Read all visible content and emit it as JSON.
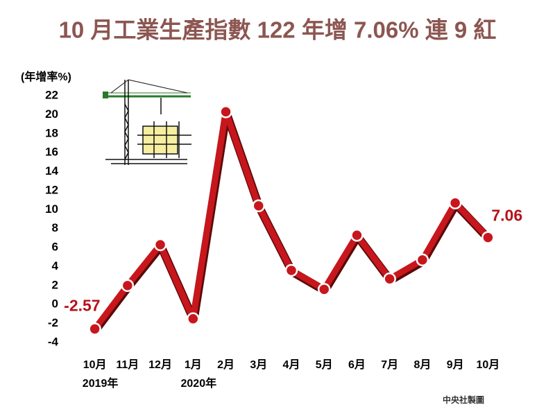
{
  "chart_data": {
    "type": "line",
    "title": "10 月工業生產指數 122 年增 7.06% 連 9 紅",
    "y_axis_label": "(年增率%)",
    "source": "中央社製圖",
    "categories": [
      "10月",
      "11月",
      "12月",
      "1月",
      "2月",
      "3月",
      "4月",
      "5月",
      "6月",
      "7月",
      "8月",
      "9月",
      "10月"
    ],
    "x_group_labels": [
      "2019年",
      null,
      null,
      "2020年",
      null,
      null,
      null,
      null,
      null,
      null,
      null,
      null,
      null
    ],
    "series": [
      {
        "name": "年增率",
        "color": "#c8161d",
        "values": [
          -2.57,
          2.0,
          6.3,
          -1.5,
          20.3,
          10.4,
          3.6,
          1.6,
          7.3,
          2.7,
          4.7,
          10.7,
          7.06
        ],
        "value_labels": [
          "-2.57",
          null,
          null,
          null,
          null,
          null,
          null,
          null,
          null,
          null,
          null,
          null,
          "7.06"
        ]
      }
    ],
    "ylim": [
      -4,
      22
    ],
    "yticks": [
      -4,
      -2,
      0,
      2,
      4,
      6,
      8,
      10,
      12,
      14,
      16,
      18,
      20,
      22
    ],
    "grid": false
  }
}
